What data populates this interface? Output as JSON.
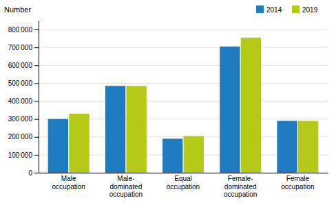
{
  "chart_data": {
    "type": "bar",
    "ylabel": "Number",
    "categories": [
      "Male\noccupation",
      "Male-\ndominated\noccupation",
      "Equal\noccupation",
      "Female-\ndominated\noccupation",
      "Female\noccupation"
    ],
    "series": [
      {
        "name": "2014",
        "color": "#1f7bbf",
        "values": [
          300000,
          485000,
          190000,
          705000,
          290000
        ]
      },
      {
        "name": "2019",
        "color": "#b5c918",
        "values": [
          330000,
          485000,
          205000,
          755000,
          290000
        ]
      }
    ],
    "ylim": [
      0,
      850000
    ],
    "yticks": [
      0,
      {
        "value": 100000,
        "label": "100 000"
      },
      {
        "value": 200000,
        "label": "200 000"
      },
      {
        "value": 300000,
        "label": "300 000"
      },
      {
        "value": 400000,
        "label": "400 000"
      },
      {
        "value": 500000,
        "label": "500 000"
      },
      {
        "value": 600000,
        "label": "600 000"
      },
      {
        "value": 700000,
        "label": "700 000"
      },
      {
        "value": 800000,
        "label": "800 000"
      }
    ],
    "grid": true,
    "legend": "upper right"
  }
}
